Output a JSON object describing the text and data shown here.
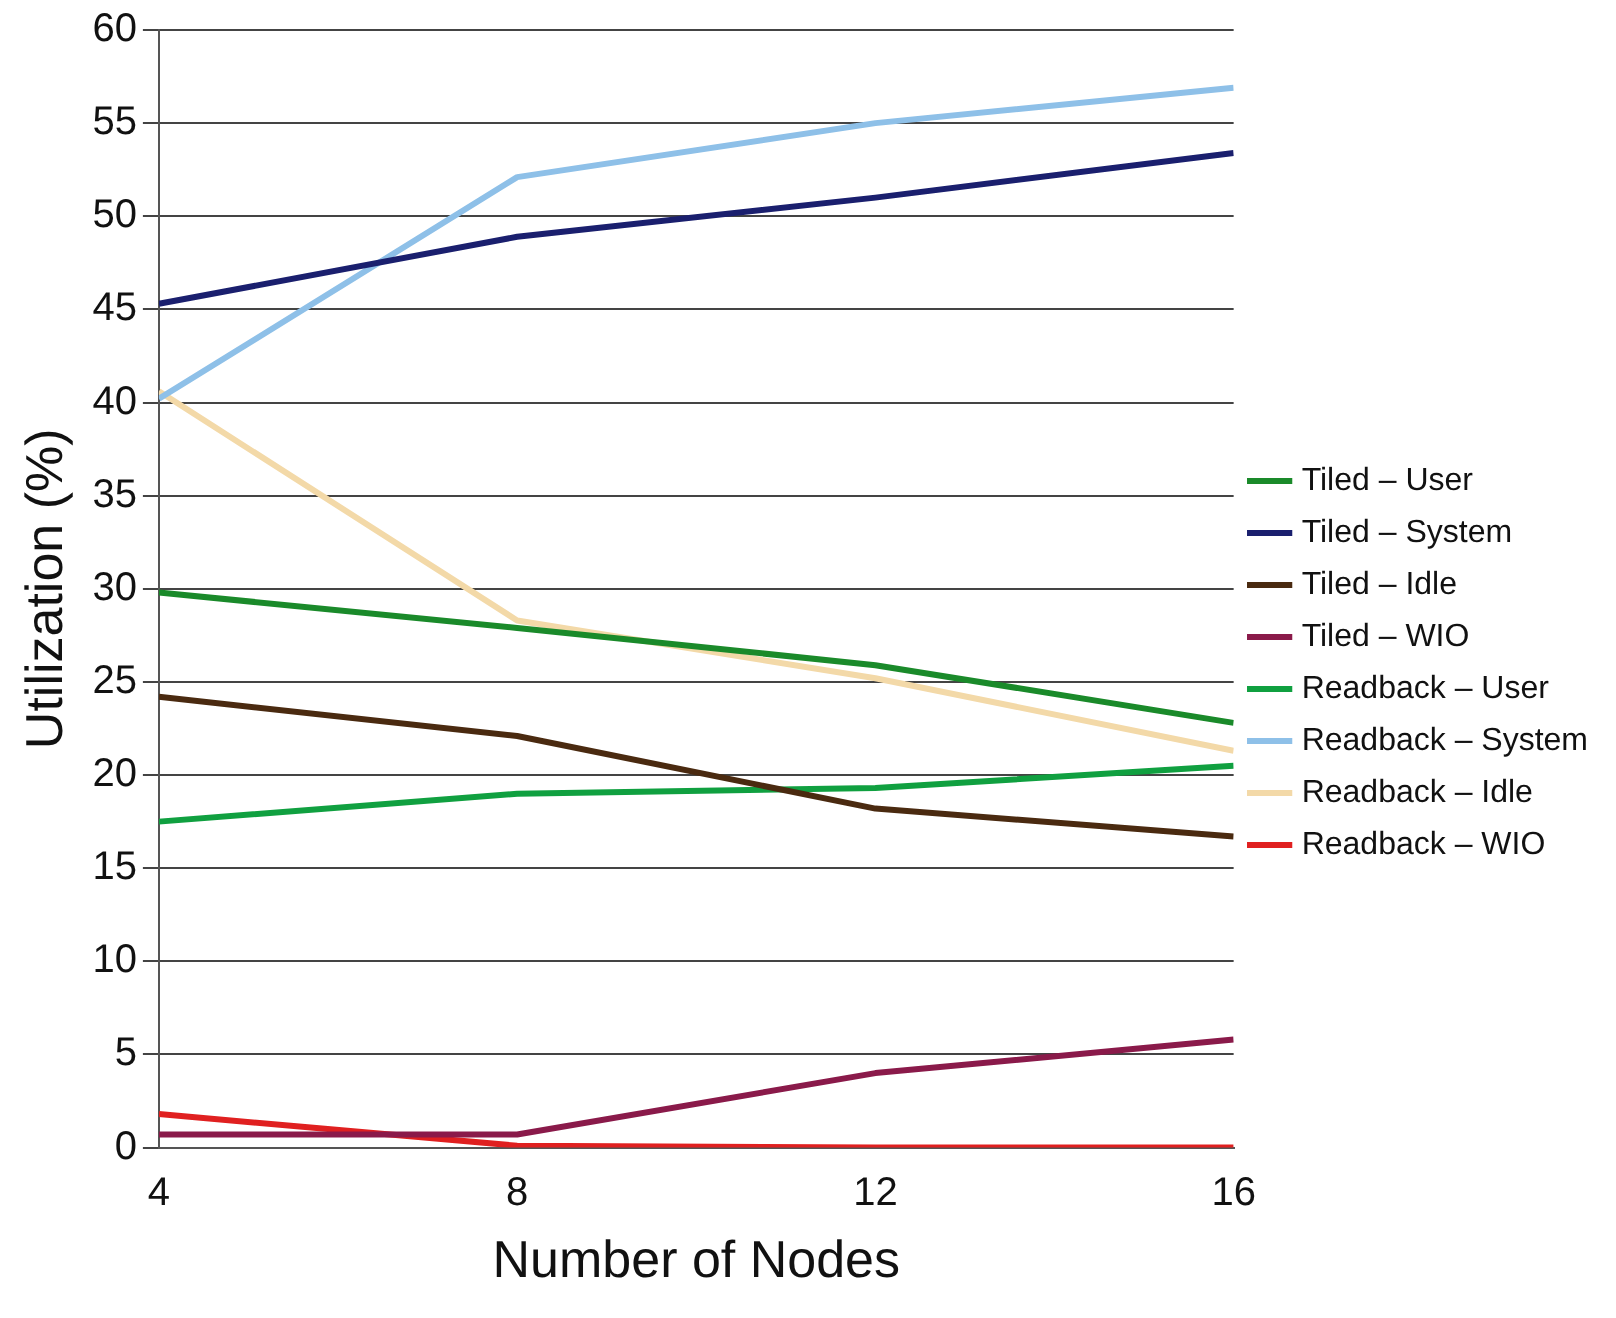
{
  "chart_data": {
    "type": "line",
    "xlabel": "Number of Nodes",
    "ylabel": "Utilization (%)",
    "x": [
      4,
      8,
      12,
      16
    ],
    "xlim": [
      4,
      16
    ],
    "xticks": [
      4,
      8,
      12,
      16
    ],
    "ylim": [
      0,
      60
    ],
    "yticks": [
      0,
      5,
      10,
      15,
      20,
      25,
      30,
      35,
      40,
      45,
      50,
      55,
      60
    ],
    "grid": "y",
    "legend": "right",
    "marker": "none",
    "line_style": "solid",
    "series": [
      {
        "name": "Tiled – User",
        "color": "#1a8a2a",
        "values": [
          29.8,
          27.9,
          25.9,
          22.8
        ]
      },
      {
        "name": "Tiled – System",
        "color": "#1a1f6e",
        "values": [
          45.3,
          48.9,
          51,
          53.4
        ]
      },
      {
        "name": "Tiled – Idle",
        "color": "#4a2a10",
        "values": [
          24.2,
          22.1,
          18.2,
          16.7
        ]
      },
      {
        "name": "Tiled – WIO",
        "color": "#8a1a4a",
        "values": [
          0.7,
          0.7,
          4,
          5.8
        ]
      },
      {
        "name": "Readback – User",
        "color": "#10a040",
        "values": [
          17.5,
          19,
          19.3,
          20.5
        ]
      },
      {
        "name": "Readback – System",
        "color": "#8ec0e8",
        "values": [
          40.2,
          52.1,
          55,
          56.9
        ]
      },
      {
        "name": "Readback – Idle",
        "color": "#f3d9a8",
        "values": [
          40.6,
          28.3,
          25.2,
          21.3
        ]
      },
      {
        "name": "Readback – WIO",
        "color": "#e02020",
        "values": [
          1.8,
          0.1,
          0,
          0
        ]
      }
    ]
  }
}
